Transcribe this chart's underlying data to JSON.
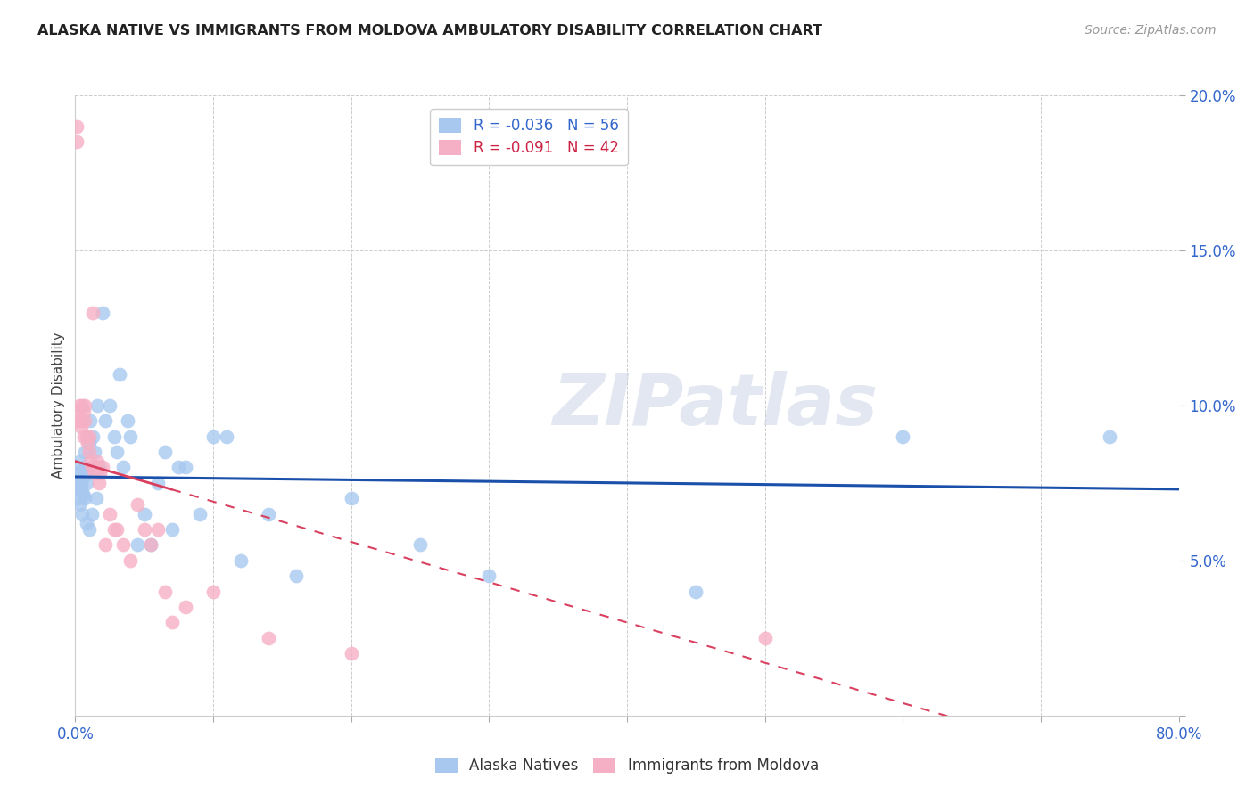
{
  "title": "ALASKA NATIVE VS IMMIGRANTS FROM MOLDOVA AMBULATORY DISABILITY CORRELATION CHART",
  "source": "Source: ZipAtlas.com",
  "ylabel": "Ambulatory Disability",
  "xlim": [
    0,
    0.8
  ],
  "ylim": [
    0,
    0.2
  ],
  "legend1_label": "R = -0.036   N = 56",
  "legend2_label": "R = -0.091   N = 42",
  "legend1_color": "#a8c8f0",
  "legend2_color": "#f5b0c5",
  "trendline1_color": "#1a4faa",
  "trendline2_color": "#d94060",
  "tick_color": "#3366cc",
  "watermark": "ZIPatlas",
  "alaska_x": [
    0.001,
    0.001,
    0.002,
    0.002,
    0.003,
    0.003,
    0.004,
    0.004,
    0.005,
    0.005,
    0.005,
    0.006,
    0.006,
    0.007,
    0.007,
    0.008,
    0.008,
    0.009,
    0.01,
    0.01,
    0.011,
    0.012,
    0.013,
    0.014,
    0.015,
    0.016,
    0.017,
    0.02,
    0.022,
    0.025,
    0.028,
    0.03,
    0.032,
    0.035,
    0.038,
    0.04,
    0.045,
    0.05,
    0.055,
    0.06,
    0.065,
    0.07,
    0.075,
    0.08,
    0.09,
    0.1,
    0.11,
    0.12,
    0.14,
    0.16,
    0.2,
    0.25,
    0.3,
    0.45,
    0.6,
    0.75
  ],
  "alaska_y": [
    0.075,
    0.073,
    0.078,
    0.07,
    0.082,
    0.068,
    0.079,
    0.074,
    0.072,
    0.076,
    0.065,
    0.071,
    0.08,
    0.085,
    0.07,
    0.075,
    0.062,
    0.078,
    0.088,
    0.06,
    0.095,
    0.065,
    0.09,
    0.085,
    0.07,
    0.1,
    0.08,
    0.13,
    0.095,
    0.1,
    0.09,
    0.085,
    0.11,
    0.08,
    0.095,
    0.09,
    0.055,
    0.065,
    0.055,
    0.075,
    0.085,
    0.06,
    0.08,
    0.08,
    0.065,
    0.09,
    0.09,
    0.05,
    0.065,
    0.045,
    0.07,
    0.055,
    0.045,
    0.04,
    0.09,
    0.09
  ],
  "moldova_x": [
    0.001,
    0.001,
    0.002,
    0.002,
    0.003,
    0.004,
    0.005,
    0.005,
    0.006,
    0.006,
    0.007,
    0.007,
    0.008,
    0.009,
    0.01,
    0.01,
    0.011,
    0.012,
    0.013,
    0.014,
    0.015,
    0.016,
    0.017,
    0.018,
    0.02,
    0.022,
    0.025,
    0.028,
    0.03,
    0.035,
    0.04,
    0.045,
    0.05,
    0.055,
    0.06,
    0.065,
    0.07,
    0.08,
    0.1,
    0.14,
    0.2,
    0.5
  ],
  "moldova_y": [
    0.19,
    0.185,
    0.098,
    0.095,
    0.1,
    0.093,
    0.1,
    0.095,
    0.098,
    0.09,
    0.1,
    0.095,
    0.09,
    0.088,
    0.085,
    0.09,
    0.082,
    0.08,
    0.13,
    0.078,
    0.08,
    0.082,
    0.075,
    0.078,
    0.08,
    0.055,
    0.065,
    0.06,
    0.06,
    0.055,
    0.05,
    0.068,
    0.06,
    0.055,
    0.06,
    0.04,
    0.03,
    0.035,
    0.04,
    0.025,
    0.02,
    0.025
  ]
}
